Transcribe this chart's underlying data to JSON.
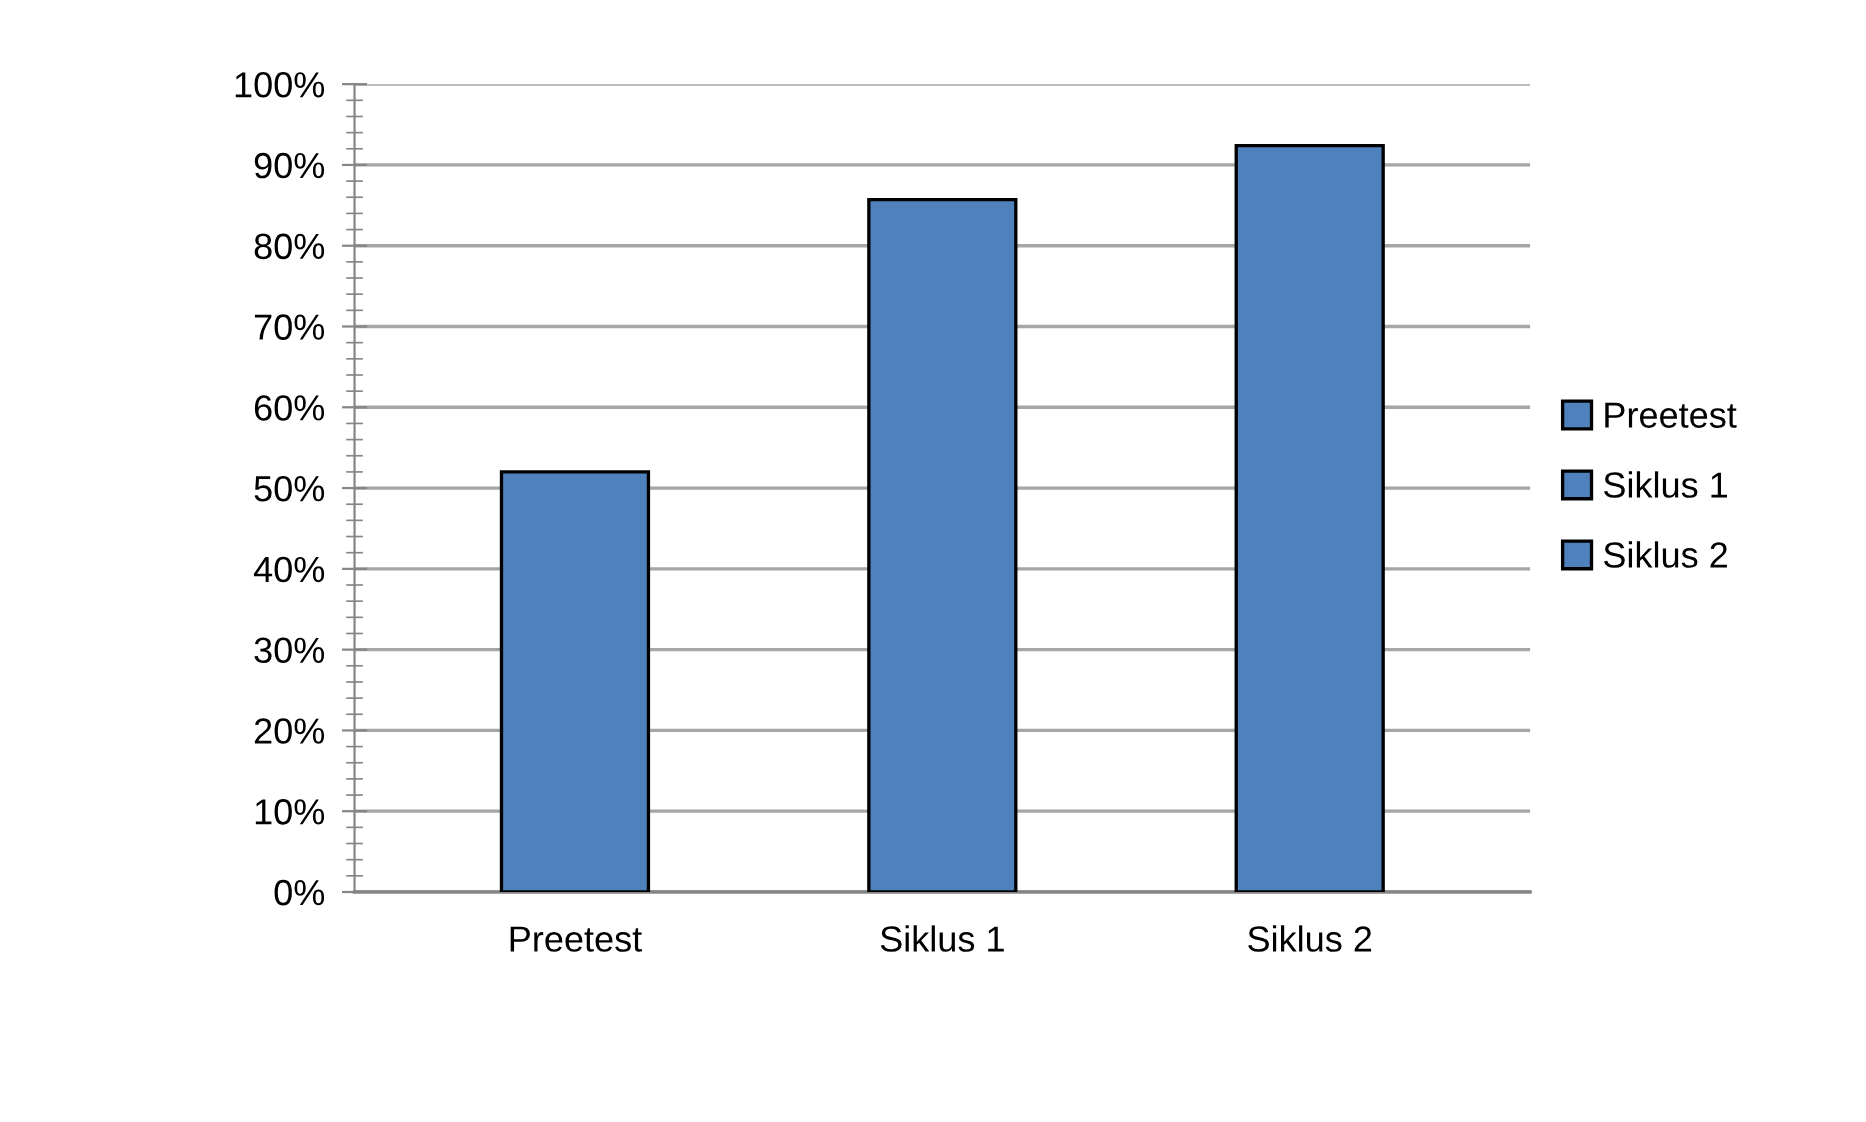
{
  "chart_data": {
    "type": "bar",
    "categories": [
      "Preetest",
      "Siklus 1",
      "Siklus 2"
    ],
    "series": [
      {
        "name": "Preetest",
        "color": "#4f81bd",
        "values": [
          52,
          null,
          null
        ]
      },
      {
        "name": "Siklus 1",
        "color": "#4f81bd",
        "values": [
          null,
          85.7,
          null
        ]
      },
      {
        "name": "Siklus 2",
        "color": "#4f81bd",
        "values": [
          null,
          null,
          92.4
        ]
      }
    ],
    "ylim": [
      0,
      100
    ],
    "yticks": [
      {
        "value": 0,
        "label": "0%"
      },
      {
        "value": 10,
        "label": "10%"
      },
      {
        "value": 20,
        "label": "20%"
      },
      {
        "value": 30,
        "label": "30%"
      },
      {
        "value": 40,
        "label": "40%"
      },
      {
        "value": 50,
        "label": "50%"
      },
      {
        "value": 60,
        "label": "60%"
      },
      {
        "value": 70,
        "label": "70%"
      },
      {
        "value": 80,
        "label": "80%"
      },
      {
        "value": 90,
        "label": "90%"
      },
      {
        "value": 100,
        "label": "100%"
      }
    ],
    "grid": "y",
    "legend": "right"
  }
}
